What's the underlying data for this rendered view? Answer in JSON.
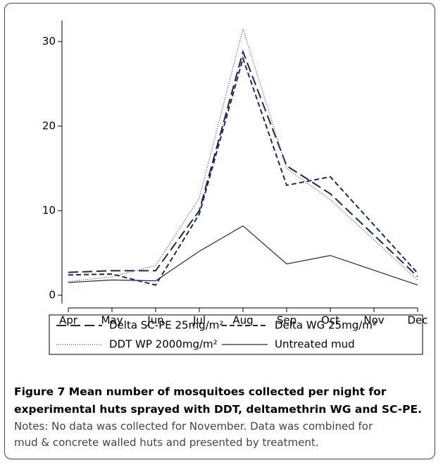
{
  "chart_data": {
    "type": "line",
    "categories": [
      "Apr",
      "May",
      "Jun",
      "Jul",
      "Aug",
      "Sep",
      "Oct",
      "Nov",
      "Dec"
    ],
    "ylim": [
      -1,
      32.5
    ],
    "yticks": [
      0,
      10,
      20,
      30
    ],
    "series": [
      {
        "name": "Delta SC-PE 25mg/m²",
        "color": "#1f2a4d",
        "dash": "14 6",
        "values": [
          2.7,
          2.9,
          2.9,
          10,
          28.8,
          15.3,
          12,
          null,
          2.2
        ]
      },
      {
        "name": "Delta WG 25mg/m²",
        "color": "#1f2a4d",
        "dash": "7 4",
        "values": [
          2.4,
          2.5,
          1.2,
          9.6,
          28,
          13,
          14,
          null,
          2.6
        ]
      },
      {
        "name": "DDT WP 2000mg/m²",
        "color": "#555",
        "dash": "1 2",
        "values": [
          1.6,
          2.2,
          3.5,
          11.5,
          31.5,
          15,
          11.3,
          null,
          1.8
        ]
      },
      {
        "name": "Untreated mud",
        "color": "#1f2a4d",
        "dash": "none",
        "values": [
          1.5,
          1.8,
          1.7,
          5.2,
          8.2,
          3.7,
          4.7,
          null,
          1.2
        ]
      }
    ]
  },
  "caption": {
    "title": [
      "Figure 7 Mean number of mosquitoes collected per night for",
      "experimental huts sprayed with DDT, deltamethrin WG and SC-PE."
    ],
    "notes": [
      "Notes: No data was collected for November. Data was combined for",
      "mud & concrete walled huts and presented by treatment."
    ]
  }
}
